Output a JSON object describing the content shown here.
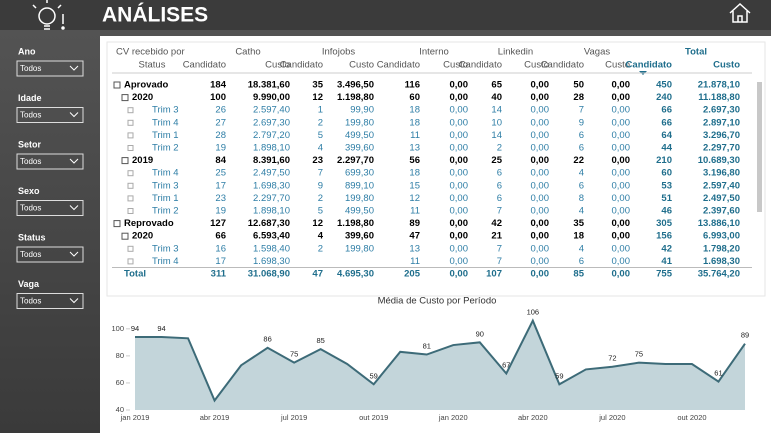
{
  "header": {
    "title": "ANÁLISES"
  },
  "filters": [
    {
      "label": "Ano",
      "value": "Todos"
    },
    {
      "label": "Idade",
      "value": "Todos"
    },
    {
      "label": "Setor",
      "value": "Todos"
    },
    {
      "label": "Sexo",
      "value": "Todos"
    },
    {
      "label": "Status",
      "value": "Todos"
    },
    {
      "label": "Vaga",
      "value": "Todos"
    }
  ],
  "table": {
    "corner": "CV recebido por",
    "row_header": "Status",
    "groups": [
      "Catho",
      "Infojobs",
      "Interno",
      "Linkedin",
      "Vagas",
      "Total"
    ],
    "measures": [
      "Candidato",
      "Custo"
    ],
    "rows": [
      {
        "label": "Aprovado",
        "level": 0,
        "cells": [
          "184",
          "18.381,60",
          "35",
          "3.496,50",
          "116",
          "0,00",
          "65",
          "0,00",
          "50",
          "0,00",
          "450",
          "21.878,10"
        ]
      },
      {
        "label": "2020",
        "level": 1,
        "cells": [
          "100",
          "9.990,00",
          "12",
          "1.198,80",
          "60",
          "0,00",
          "40",
          "0,00",
          "28",
          "0,00",
          "240",
          "11.188,80"
        ]
      },
      {
        "label": "Trim 3",
        "level": 2,
        "cells": [
          "26",
          "2.597,40",
          "1",
          "99,90",
          "18",
          "0,00",
          "14",
          "0,00",
          "7",
          "0,00",
          "66",
          "2.697,30"
        ]
      },
      {
        "label": "Trim 4",
        "level": 2,
        "cells": [
          "27",
          "2.697,30",
          "2",
          "199,80",
          "18",
          "0,00",
          "10",
          "0,00",
          "9",
          "0,00",
          "66",
          "2.897,10"
        ]
      },
      {
        "label": "Trim 1",
        "level": 2,
        "cells": [
          "28",
          "2.797,20",
          "5",
          "499,50",
          "11",
          "0,00",
          "14",
          "0,00",
          "6",
          "0,00",
          "64",
          "3.296,70"
        ]
      },
      {
        "label": "Trim 2",
        "level": 2,
        "cells": [
          "19",
          "1.898,10",
          "4",
          "399,60",
          "13",
          "0,00",
          "2",
          "0,00",
          "6",
          "0,00",
          "44",
          "2.297,70"
        ]
      },
      {
        "label": "2019",
        "level": 1,
        "cells": [
          "84",
          "8.391,60",
          "23",
          "2.297,70",
          "56",
          "0,00",
          "25",
          "0,00",
          "22",
          "0,00",
          "210",
          "10.689,30"
        ]
      },
      {
        "label": "Trim 4",
        "level": 2,
        "cells": [
          "25",
          "2.497,50",
          "7",
          "699,30",
          "18",
          "0,00",
          "6",
          "0,00",
          "4",
          "0,00",
          "60",
          "3.196,80"
        ]
      },
      {
        "label": "Trim 3",
        "level": 2,
        "cells": [
          "17",
          "1.698,30",
          "9",
          "899,10",
          "15",
          "0,00",
          "6",
          "0,00",
          "6",
          "0,00",
          "53",
          "2.597,40"
        ]
      },
      {
        "label": "Trim 1",
        "level": 2,
        "cells": [
          "23",
          "2.297,70",
          "2",
          "199,80",
          "12",
          "0,00",
          "6",
          "0,00",
          "8",
          "0,00",
          "51",
          "2.497,50"
        ]
      },
      {
        "label": "Trim 2",
        "level": 2,
        "cells": [
          "19",
          "1.898,10",
          "5",
          "499,50",
          "11",
          "0,00",
          "7",
          "0,00",
          "4",
          "0,00",
          "46",
          "2.397,60"
        ]
      },
      {
        "label": "Reprovado",
        "level": 0,
        "cells": [
          "127",
          "12.687,30",
          "12",
          "1.198,80",
          "89",
          "0,00",
          "42",
          "0,00",
          "35",
          "0,00",
          "305",
          "13.886,10"
        ]
      },
      {
        "label": "2020",
        "level": 1,
        "cells": [
          "66",
          "6.593,40",
          "4",
          "399,60",
          "47",
          "0,00",
          "21",
          "0,00",
          "18",
          "0,00",
          "156",
          "6.993,00"
        ]
      },
      {
        "label": "Trim 3",
        "level": 2,
        "cells": [
          "16",
          "1.598,40",
          "2",
          "199,80",
          "13",
          "0,00",
          "7",
          "0,00",
          "4",
          "0,00",
          "42",
          "1.798,20"
        ]
      },
      {
        "label": "Trim 4",
        "level": 2,
        "cells": [
          "17",
          "1.698,30",
          null,
          null,
          "11",
          "0,00",
          "7",
          "0,00",
          "6",
          "0,00",
          "41",
          "1.698,30"
        ]
      },
      {
        "label": "Total",
        "level": 3,
        "cells": [
          "311",
          "31.068,90",
          "47",
          "4.695,30",
          "205",
          "0,00",
          "107",
          "0,00",
          "85",
          "0,00",
          "755",
          "35.764,20"
        ]
      }
    ]
  },
  "chart_data": {
    "type": "area",
    "title": "Média de Custo por Período",
    "categories": [
      "jan 2019",
      null,
      null,
      "abr 2019",
      null,
      null,
      "jul 2019",
      null,
      null,
      "out 2019",
      null,
      null,
      "jan 2020",
      null,
      null,
      "abr 2020",
      null,
      null,
      "jul 2020",
      null,
      null,
      "out 2020",
      null,
      null
    ],
    "values": [
      94,
      94,
      93,
      47,
      73,
      86,
      75,
      85,
      74,
      59,
      83,
      81,
      88,
      90,
      67,
      106,
      59,
      70,
      72,
      75,
      74,
      74,
      61,
      89
    ],
    "value_labels": [
      "94",
      "94",
      null,
      null,
      null,
      "86",
      "75",
      "85",
      null,
      "59",
      null,
      "81",
      null,
      "90",
      "67",
      "106",
      "59",
      null,
      "72",
      "75",
      null,
      null,
      "61",
      "89"
    ],
    "color": "#c3d5da",
    "line_color": "#3d6b78",
    "ylim": [
      40,
      108
    ],
    "yticks": [
      40,
      60,
      80,
      100
    ]
  }
}
